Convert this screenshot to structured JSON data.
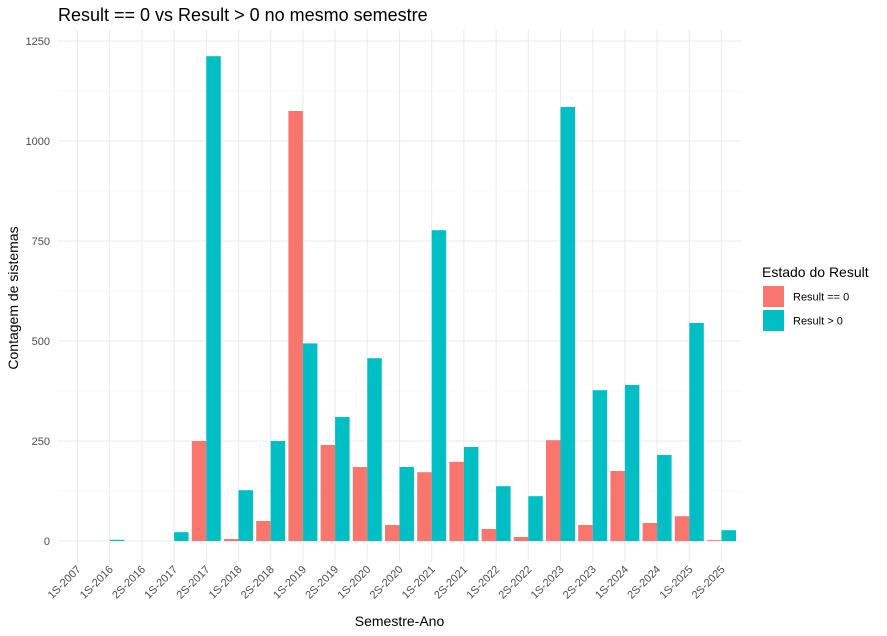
{
  "chart_data": {
    "type": "bar",
    "title": "Result == 0 vs Result > 0 no mesmo semestre",
    "xlabel": "Semestre-Ano",
    "ylabel": "Contagem de sistemas",
    "ylim": [
      0,
      1250
    ],
    "yticks": [
      0,
      250,
      500,
      750,
      1000,
      1250
    ],
    "grid": true,
    "legend_position": "right",
    "legend_title": "Estado do Result",
    "categories": [
      "1S-2007",
      "1S-2016",
      "2S-2016",
      "1S-2017",
      "2S-2017",
      "1S-2018",
      "2S-2018",
      "1S-2019",
      "2S-2019",
      "1S-2020",
      "2S-2020",
      "1S-2021",
      "2S-2021",
      "1S-2022",
      "2S-2022",
      "1S-2023",
      "2S-2023",
      "1S-2024",
      "2S-2024",
      "1S-2025",
      "2S-2025"
    ],
    "series": [
      {
        "name": "Result == 0",
        "color": "#F8766D",
        "values": [
          0,
          0,
          0,
          0,
          250,
          5,
          50,
          1075,
          240,
          185,
          40,
          172,
          198,
          30,
          10,
          252,
          40,
          175,
          45,
          62,
          2
        ]
      },
      {
        "name": "Result > 0",
        "color": "#00BFC4",
        "values": [
          0,
          3,
          0,
          22,
          1212,
          127,
          250,
          494,
          310,
          457,
          185,
          777,
          235,
          137,
          112,
          1085,
          377,
          390,
          215,
          545,
          27
        ]
      }
    ]
  }
}
